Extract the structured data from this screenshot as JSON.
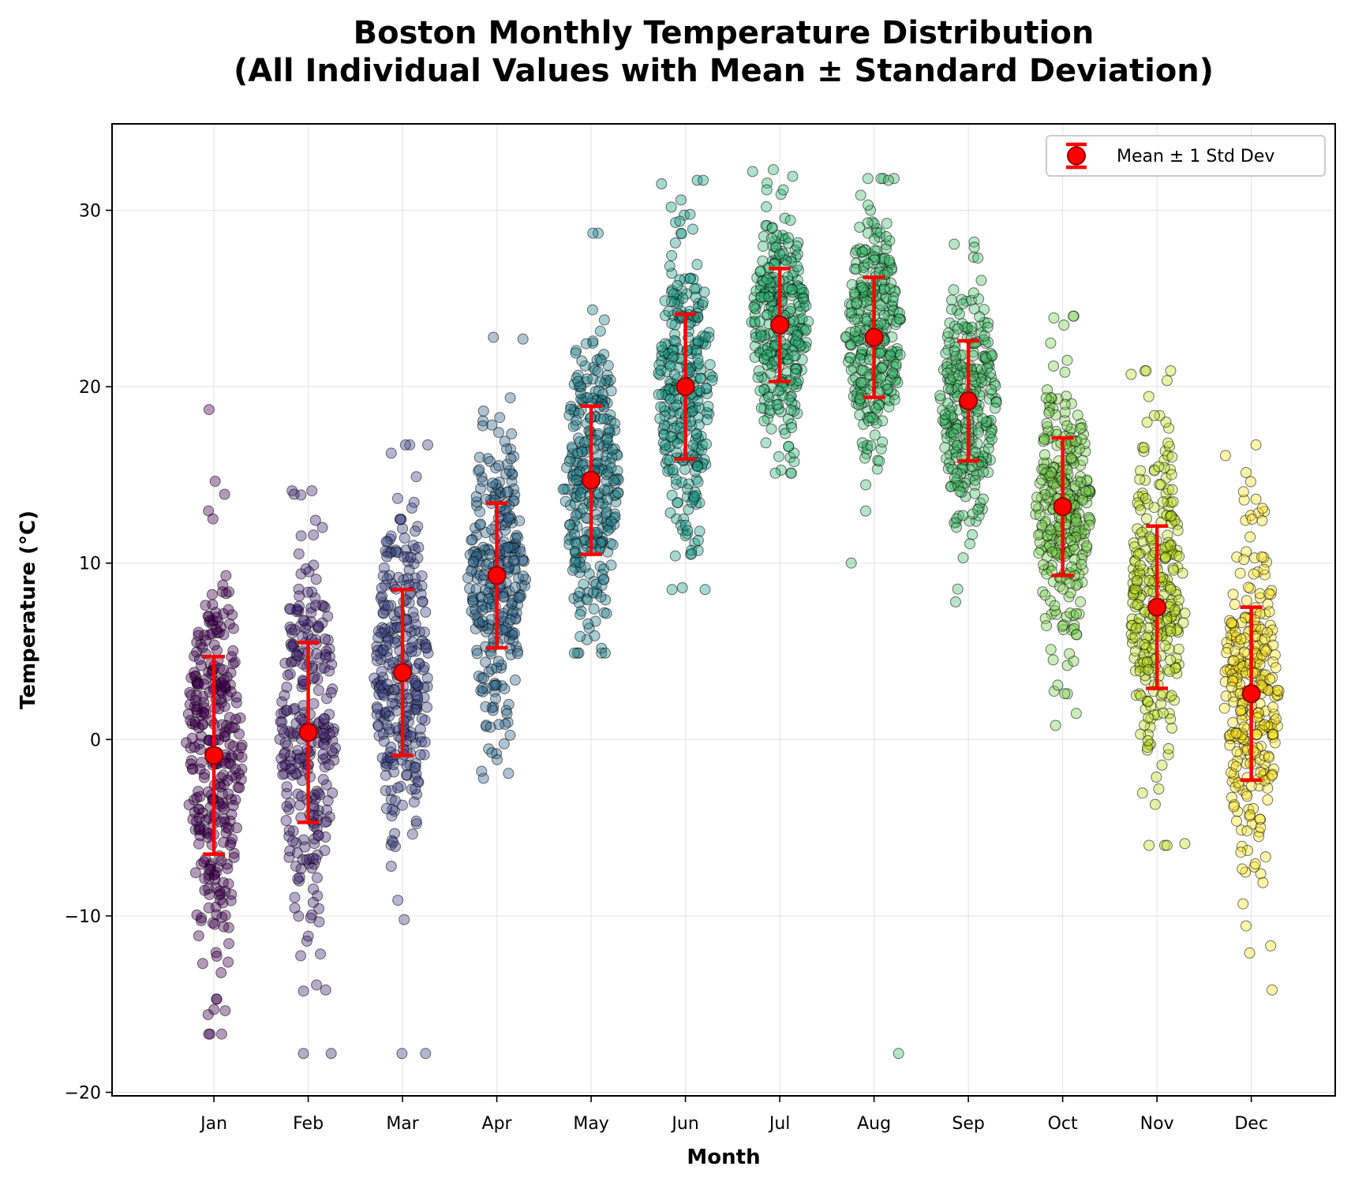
{
  "chart_data": {
    "type": "scatter",
    "title": "Boston Monthly Temperature Distribution\n(All Individual Values with Mean ± Standard Deviation)",
    "title_lines": [
      "Boston Monthly Temperature Distribution",
      "(All Individual Values with Mean ± Standard Deviation)"
    ],
    "xlabel": "Month",
    "ylabel": "Temperature (°C)",
    "categories": [
      "Jan",
      "Feb",
      "Mar",
      "Apr",
      "May",
      "Jun",
      "Jul",
      "Aug",
      "Sep",
      "Oct",
      "Nov",
      "Dec"
    ],
    "xlim": [
      -0.08,
      12.89
    ],
    "ylim": [
      -20.2,
      34.9
    ],
    "yticks": [
      -20,
      -10,
      0,
      10,
      20,
      30
    ],
    "ytick_labels": [
      "−20",
      "−10",
      "0",
      "10",
      "20",
      "30"
    ],
    "grid": true,
    "colormap": "viridis",
    "point_alpha": 0.4,
    "legend": {
      "placement": "top-right",
      "entries": [
        {
          "label": "Mean ± 1 Std Dev",
          "marker": "red-circle-errorbar"
        }
      ]
    },
    "series": [
      {
        "name": "Jan",
        "mean": -0.9,
        "std": 5.6,
        "n": 310,
        "color": "#440154",
        "min": -16.7,
        "max": 18.7,
        "outliers": [
          -16.7,
          -16.7,
          -16.7,
          -15.6,
          18.7,
          13.9
        ]
      },
      {
        "name": "Feb",
        "mean": 0.4,
        "std": 5.1,
        "n": 280,
        "color": "#482878",
        "min": -17.8,
        "max": 14.1,
        "outliers": [
          -17.8,
          -17.8,
          -14.2,
          14.1,
          13.9
        ]
      },
      {
        "name": "Mar",
        "mean": 3.8,
        "std": 4.7,
        "n": 310,
        "color": "#3e4989",
        "min": -17.8,
        "max": 16.7,
        "outliers": [
          -17.8,
          -17.8,
          16.7,
          14.9
        ]
      },
      {
        "name": "Apr",
        "mean": 9.3,
        "std": 4.1,
        "n": 300,
        "color": "#31688e",
        "min": -2.2,
        "max": 22.8,
        "outliers": [
          -2.2,
          -1.8,
          22.8,
          22.7
        ]
      },
      {
        "name": "May",
        "mean": 14.7,
        "std": 4.2,
        "n": 310,
        "color": "#26828e",
        "min": 4.9,
        "max": 28.7,
        "outliers": [
          4.9,
          28.7,
          28.7
        ]
      },
      {
        "name": "Jun",
        "mean": 20.0,
        "std": 4.1,
        "n": 300,
        "color": "#1f9e89",
        "min": 8.5,
        "max": 31.7,
        "outliers": [
          8.5,
          31.7,
          31.5
        ]
      },
      {
        "name": "Jul",
        "mean": 23.5,
        "std": 3.2,
        "n": 310,
        "color": "#35b779",
        "min": 15.1,
        "max": 32.3,
        "outliers": [
          15.1,
          32.3,
          32.2
        ]
      },
      {
        "name": "Aug",
        "mean": 22.8,
        "std": 3.4,
        "n": 310,
        "color": "#44bf70",
        "min": -17.8,
        "max": 31.8,
        "outliers": [
          -17.8,
          10.0,
          31.8,
          31.7
        ]
      },
      {
        "name": "Sep",
        "mean": 19.2,
        "std": 3.4,
        "n": 300,
        "color": "#4ac16d",
        "min": 7.8,
        "max": 28.2,
        "outliers": [
          7.8,
          11.1,
          28.2,
          27.9
        ]
      },
      {
        "name": "Oct",
        "mean": 13.2,
        "std": 3.9,
        "n": 310,
        "color": "#7ad151",
        "min": 0.8,
        "max": 24.0,
        "outliers": [
          0.8,
          2.6,
          24.0,
          23.9
        ]
      },
      {
        "name": "Nov",
        "mean": 7.5,
        "std": 4.6,
        "n": 300,
        "color": "#bddf26",
        "min": -6.0,
        "max": 20.9,
        "outliers": [
          -6.0,
          -5.9,
          20.9,
          20.7
        ]
      },
      {
        "name": "Dec",
        "mean": 2.6,
        "std": 4.9,
        "n": 310,
        "color": "#fde725",
        "min": -14.2,
        "max": 16.7,
        "outliers": [
          -14.2,
          -12.1,
          -11.7,
          16.7,
          16.1
        ]
      }
    ]
  }
}
